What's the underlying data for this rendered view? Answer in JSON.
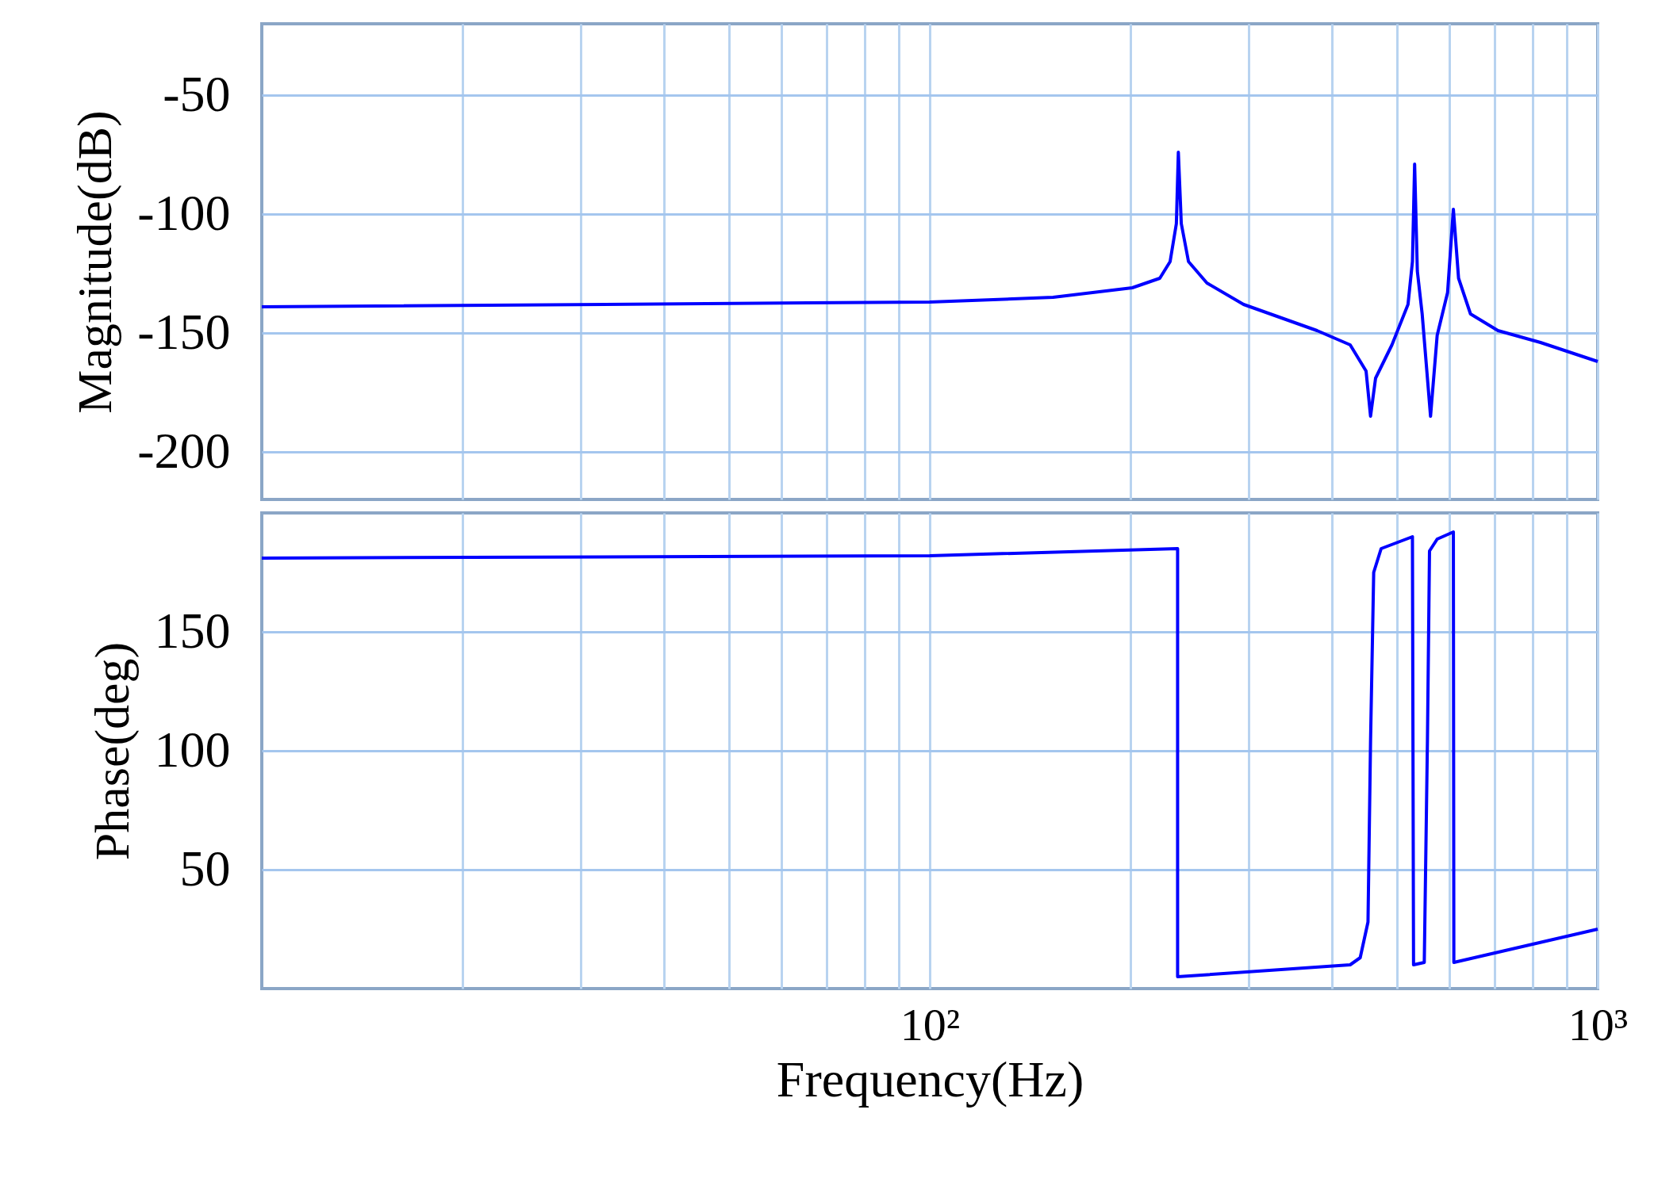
{
  "chart_data": [
    {
      "type": "line",
      "ylabel": "Magnitude(dB)",
      "grid": true,
      "log": "x",
      "tick_labels": "y",
      "xlim": [
        10,
        1000
      ],
      "xticks": [
        {
          "value": 20,
          "label": null
        },
        {
          "value": 30,
          "label": null
        },
        {
          "value": 40,
          "label": null
        },
        {
          "value": 50,
          "label": null
        },
        {
          "value": 60,
          "label": null
        },
        {
          "value": 70,
          "label": null
        },
        {
          "value": 80,
          "label": null
        },
        {
          "value": 90,
          "label": null
        },
        {
          "value": 100,
          "label": null
        },
        {
          "value": 200,
          "label": null
        },
        {
          "value": 300,
          "label": null
        },
        {
          "value": 400,
          "label": null
        },
        {
          "value": 500,
          "label": null
        },
        {
          "value": 600,
          "label": null
        },
        {
          "value": 700,
          "label": null
        },
        {
          "value": 800,
          "label": null
        },
        {
          "value": 900,
          "label": null
        },
        {
          "value": 1000,
          "label": null
        }
      ],
      "ylim": [
        -220,
        -20
      ],
      "yticks": [
        -50,
        -100,
        -150,
        -200
      ],
      "series": [
        {
          "color": "#0000ff",
          "x": [
            10,
            100,
            153,
            201,
            221,
            229,
            234,
            235.6,
            238,
            244,
            260,
            295,
            380,
            426,
            450,
            457,
            465,
            492,
            520,
            528,
            532,
            537,
            546,
            562,
            575,
            596,
            608,
            619,
            645,
            709,
            821,
            1000
          ],
          "values": [
            -139,
            -137,
            -135,
            -131,
            -127,
            -120,
            -104,
            -74,
            -104,
            -120,
            -129,
            -138,
            -149,
            -155,
            -166,
            -185,
            -169,
            -155,
            -138,
            -120,
            -79,
            -124,
            -142,
            -185,
            -151,
            -133,
            -98,
            -127,
            -142,
            -149,
            -154,
            -162
          ]
        }
      ]
    },
    {
      "type": "line",
      "ylabel": "Phase(deg)",
      "xlabel": "Frequency(Hz)",
      "grid": true,
      "log": "x",
      "xlim": [
        10,
        1000
      ],
      "xticks": [
        {
          "value": 20,
          "label": null
        },
        {
          "value": 30,
          "label": null
        },
        {
          "value": 40,
          "label": null
        },
        {
          "value": 50,
          "label": null
        },
        {
          "value": 60,
          "label": null
        },
        {
          "value": 70,
          "label": null
        },
        {
          "value": 80,
          "label": null
        },
        {
          "value": 90,
          "label": null
        },
        {
          "value": 100,
          "label": "10²"
        },
        {
          "value": 200,
          "label": null
        },
        {
          "value": 300,
          "label": null
        },
        {
          "value": 400,
          "label": null
        },
        {
          "value": 500,
          "label": null
        },
        {
          "value": 600,
          "label": null
        },
        {
          "value": 700,
          "label": null
        },
        {
          "value": 800,
          "label": null
        },
        {
          "value": 900,
          "label": null
        },
        {
          "value": 1000,
          "label": "10³"
        }
      ],
      "ylim": [
        0,
        200
      ],
      "yticks": [
        50,
        100,
        150
      ],
      "series": [
        {
          "color": "#0000ff",
          "x": [
            10,
            100,
            235,
            235,
            426,
            441,
            453,
            457,
            462,
            474,
            528,
            530,
            550,
            556,
            560,
            575,
            608,
            609,
            1000
          ],
          "values": [
            181,
            182,
            185,
            5,
            10,
            13,
            28,
            104,
            175,
            185,
            190,
            10,
            11,
            104,
            184,
            189,
            192,
            11,
            25
          ]
        }
      ]
    }
  ]
}
